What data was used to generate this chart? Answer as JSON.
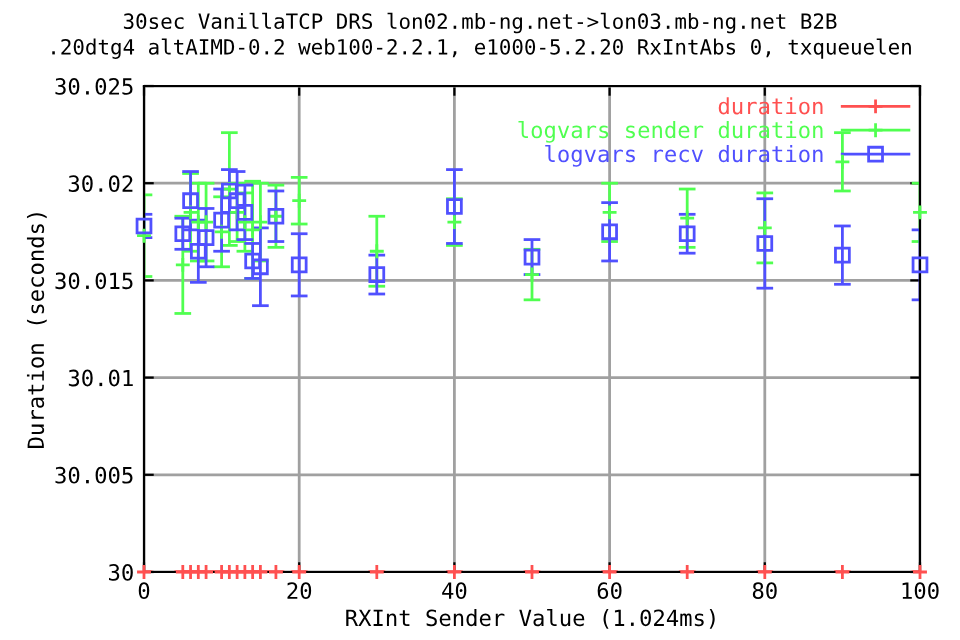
{
  "chart_data": {
    "type": "scatter",
    "title": "30sec VanillaTCP DRS lon02.mb-ng.net->lon03.mb-ng.net B2B",
    "subtitle": ".20dtg4 altAIMD-0.2 web100-2.2.1, e1000-5.2.20 RxIntAbs 0, txqueuelen",
    "xlabel": "RXInt Sender Value (1.024ms)",
    "ylabel": "Duration (seconds)",
    "x": [
      0,
      5,
      6,
      7,
      8,
      10,
      11,
      12,
      13,
      14,
      15,
      17,
      20,
      30,
      40,
      50,
      60,
      70,
      80,
      90,
      100
    ],
    "series": [
      {
        "name": "duration",
        "color": "#ff5050",
        "marker": "cross",
        "values": [
          30,
          30,
          30,
          30,
          30,
          30,
          30,
          30,
          30,
          30,
          30,
          30,
          30,
          30,
          30,
          30,
          30,
          30,
          30,
          30,
          30
        ],
        "errors": [
          0,
          0,
          0,
          0,
          0,
          0,
          0,
          0,
          0,
          0,
          0,
          0,
          0,
          0,
          0,
          0,
          0,
          0,
          0,
          0,
          0
        ]
      },
      {
        "name": "logvars sender duration",
        "color": "#50ff50",
        "marker": "cross",
        "values": [
          30.0173,
          30.0158,
          30.0185,
          30.018,
          30.018,
          30.0175,
          30.0197,
          30.0185,
          30.018,
          30.0176,
          30.018,
          30.0183,
          30.0191,
          30.0165,
          30.018,
          30.0153,
          30.0185,
          30.0182,
          30.0177,
          30.0211,
          30.0185
        ],
        "errors": [
          0.0021,
          0.0025,
          0.002,
          0.002,
          0.002,
          0.0018,
          0.0029,
          0.0015,
          0.0015,
          0.0025,
          0.002,
          0.0016,
          0.0012,
          0.0018,
          0.0012,
          0.0013,
          0.0015,
          0.0015,
          0.0018,
          0.0015,
          0.0015
        ]
      },
      {
        "name": "logvars recv duration",
        "color": "#5050ff",
        "marker": "square",
        "values": [
          30.0178,
          30.0174,
          30.0191,
          30.0165,
          30.0172,
          30.0181,
          30.0196,
          30.0191,
          30.0185,
          30.016,
          30.0157,
          30.0183,
          30.0158,
          30.0153,
          30.0188,
          30.0162,
          30.0175,
          30.0174,
          30.0169,
          30.0163,
          30.0158
        ],
        "errors": [
          0.0006,
          0.0008,
          0.0015,
          0.0016,
          0.0015,
          0.0016,
          0.0011,
          0.0015,
          0.0014,
          0.0009,
          0.002,
          0.0013,
          0.0016,
          0.001,
          0.0019,
          0.0009,
          0.0015,
          0.001,
          0.0023,
          0.0015,
          0.0018
        ]
      }
    ],
    "xlim": [
      0,
      100
    ],
    "xticks": [
      0,
      20,
      40,
      60,
      80,
      100
    ],
    "ylim": [
      30,
      30.025
    ],
    "yticks": [
      30,
      30.005,
      30.01,
      30.015,
      30.02,
      30.025
    ],
    "grid": true,
    "legend": "top right"
  }
}
